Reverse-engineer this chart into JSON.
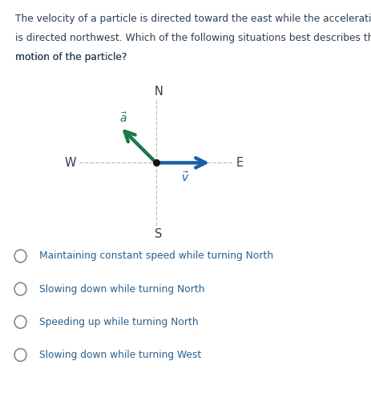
{
  "question_line1": "The velocity of a particle is directed toward the east while the acceleration",
  "question_line2": "is directed northwest. Which of the following situations best describes the",
  "question_line3": "motion of the particle?",
  "compass_labels": {
    "N": "N",
    "S": "S",
    "E": "E",
    "W": "W"
  },
  "velocity_color": "#1a5fa8",
  "accel_color": "#1a7a4a",
  "dot_color": "#111111",
  "text_color": "#2c3e50",
  "choices": [
    "Maintaining constant speed while turning North",
    "Slowing down while turning North",
    "Speeding up while turning North",
    "Slowing down while turning West"
  ],
  "choice_color": "#2c5f8a",
  "background_color": "#ffffff"
}
